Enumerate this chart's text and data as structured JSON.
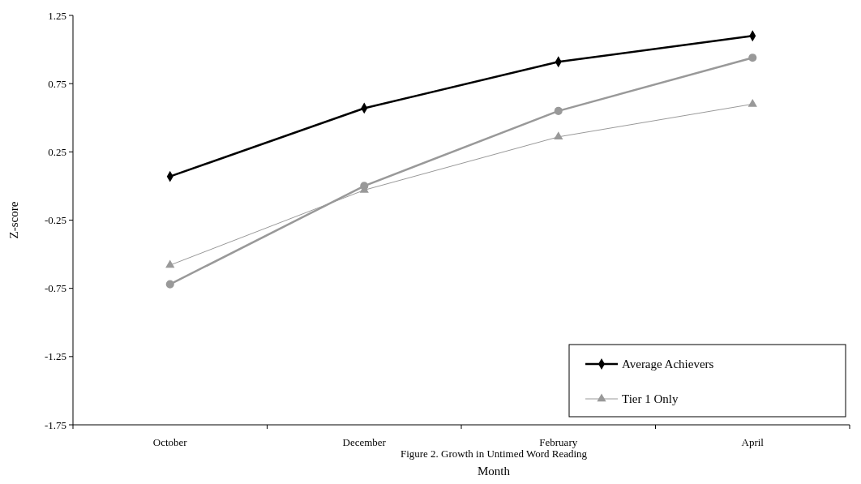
{
  "chart_data": {
    "type": "line",
    "xlabel": "Month",
    "ylabel": "Z-score",
    "annotations": [
      "Figure 2.  Growth in Untimed Word Reading"
    ],
    "categories": [
      "October",
      "December",
      "February",
      "April"
    ],
    "ylim": [
      -1.75,
      1.25
    ],
    "yticks": [
      -1.75,
      -1.25,
      -0.75,
      -0.25,
      0.25,
      0.75,
      1.25
    ],
    "grid": false,
    "legend": "bottom right",
    "series": [
      {
        "name": "Average Achievers",
        "color": "#000000",
        "marker": "diamond",
        "values": [
          0.07,
          0.57,
          0.91,
          1.1
        ]
      },
      {
        "name": "Tier 1 Only",
        "color": "#999999",
        "marker": "triangle",
        "values": [
          -0.58,
          -0.03,
          0.36,
          0.6
        ]
      },
      {
        "color": "#999999",
        "marker": "circle",
        "values": [
          -0.72,
          0.0,
          0.55,
          0.94
        ]
      }
    ]
  }
}
